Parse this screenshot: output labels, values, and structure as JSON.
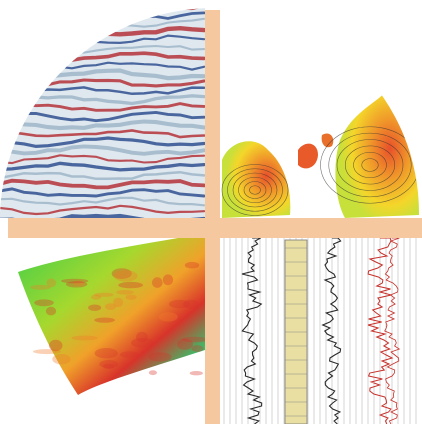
{
  "logo": {
    "colors": {
      "cross": "#f6c8a0",
      "background": "#ffffff",
      "seismic_red": "#b5323a",
      "seismic_blue": "#2f4f8f",
      "map_orange": "#e8752a",
      "map_yellow": "#f4d62a",
      "heat_green": "#4fbf3a",
      "heat_red": "#d8332a",
      "heat_blue": "#2fb5c8",
      "log_red": "#c8302a",
      "log_black": "#2a2a2a",
      "log_sand": "#e9dfa2"
    },
    "quadrants": [
      {
        "name": "seismic-section",
        "icon": "seismic-section-icon"
      },
      {
        "name": "contour-map",
        "icon": "contour-map-icon"
      },
      {
        "name": "property-heatmap",
        "icon": "heatmap-icon"
      },
      {
        "name": "well-logs",
        "icon": "well-log-icon"
      }
    ]
  }
}
